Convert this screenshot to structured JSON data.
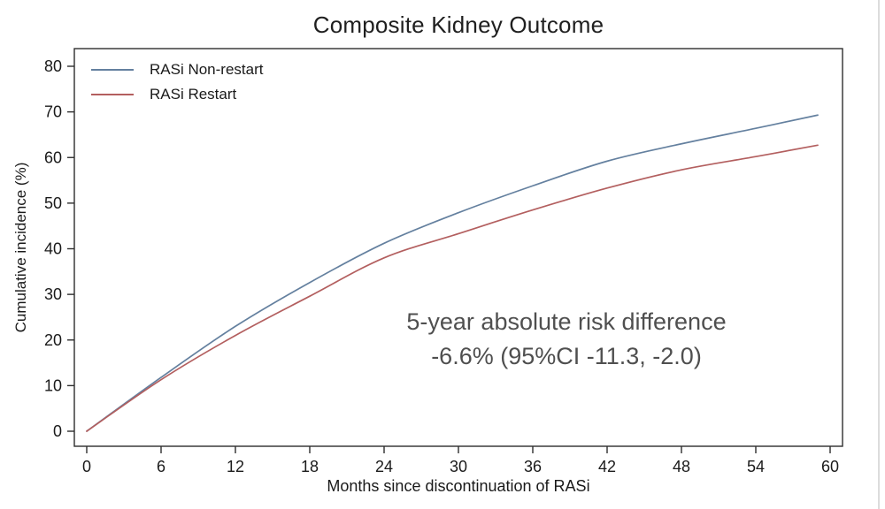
{
  "chart_data": {
    "type": "line",
    "title": "Composite Kidney Outcome",
    "xlabel": "Months since discontinuation of RASi",
    "ylabel": "Cumulative incidence (%)",
    "xlim": [
      0,
      60
    ],
    "ylim": [
      0,
      80
    ],
    "xticks": [
      0,
      6,
      12,
      18,
      24,
      30,
      36,
      42,
      48,
      54,
      60
    ],
    "yticks": [
      0,
      10,
      20,
      30,
      40,
      50,
      60,
      70,
      80
    ],
    "grid": false,
    "legend_position": "top-left",
    "x": [
      0,
      6,
      12,
      18,
      24,
      30,
      36,
      42,
      48,
      54,
      59
    ],
    "series": [
      {
        "name": "RASi Non-restart",
        "color": "#64809f",
        "values": [
          0,
          11.8,
          23.0,
          32.6,
          41.2,
          47.9,
          53.8,
          59.2,
          63.0,
          66.4,
          69.3
        ]
      },
      {
        "name": "RASi Restart",
        "color": "#b35f5f",
        "values": [
          0,
          11.3,
          21.0,
          29.6,
          38.0,
          43.3,
          48.5,
          53.3,
          57.3,
          60.2,
          62.7
        ]
      }
    ],
    "annotation": {
      "line1": "5-year absolute risk difference",
      "line2": "-6.6% (95%CI -11.3, -2.0)"
    },
    "frame_color": "#2e2e2e",
    "tick_label_color": "#1a1a1a"
  }
}
